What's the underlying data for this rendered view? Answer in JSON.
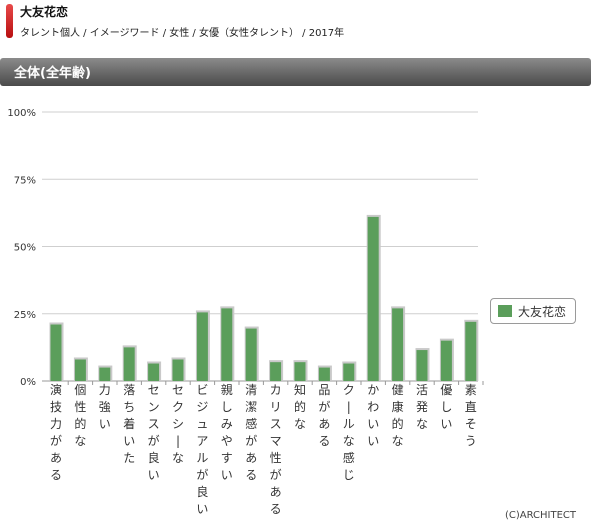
{
  "header": {
    "name": "大友花恋",
    "breadcrumb": "タレント個人 / イメージワード / 女性 / 女優（女性タレント） / 2017年"
  },
  "section": {
    "title": "全体(全年齢)"
  },
  "colors": {
    "bar": "#5b9e5b",
    "bar_shadow": "#c9c9c9",
    "grid": "#cfcfcf",
    "header_bg": "#6b6b6b",
    "accent": "#c41a1a"
  },
  "chart_data": {
    "type": "bar",
    "title": "",
    "xlabel": "",
    "ylabel": "",
    "ylim": [
      0,
      100
    ],
    "yticks": [
      "0%",
      "25%",
      "50%",
      "75%",
      "100%"
    ],
    "categories": [
      "演技力がある",
      "個性的な",
      "力強い",
      "落ち着いた",
      "センスが良い",
      "セクシーな",
      "ビジュアルが良い",
      "親しみやすい",
      "清潔感がある",
      "カリスマ性がある",
      "知的な",
      "品がある",
      "クールな感じ",
      "かわいい",
      "健康的な",
      "活発な",
      "優しい",
      "素直そう"
    ],
    "series": [
      {
        "name": "大友花恋",
        "values": [
          21,
          8,
          5,
          12.5,
          6.5,
          8,
          25.5,
          27,
          19.5,
          7,
          7,
          5,
          6.5,
          61,
          27,
          11.5,
          15,
          22
        ]
      }
    ],
    "legend": {
      "position": "right"
    }
  },
  "footer": {
    "copyright": "(C)ARCHITECT"
  }
}
